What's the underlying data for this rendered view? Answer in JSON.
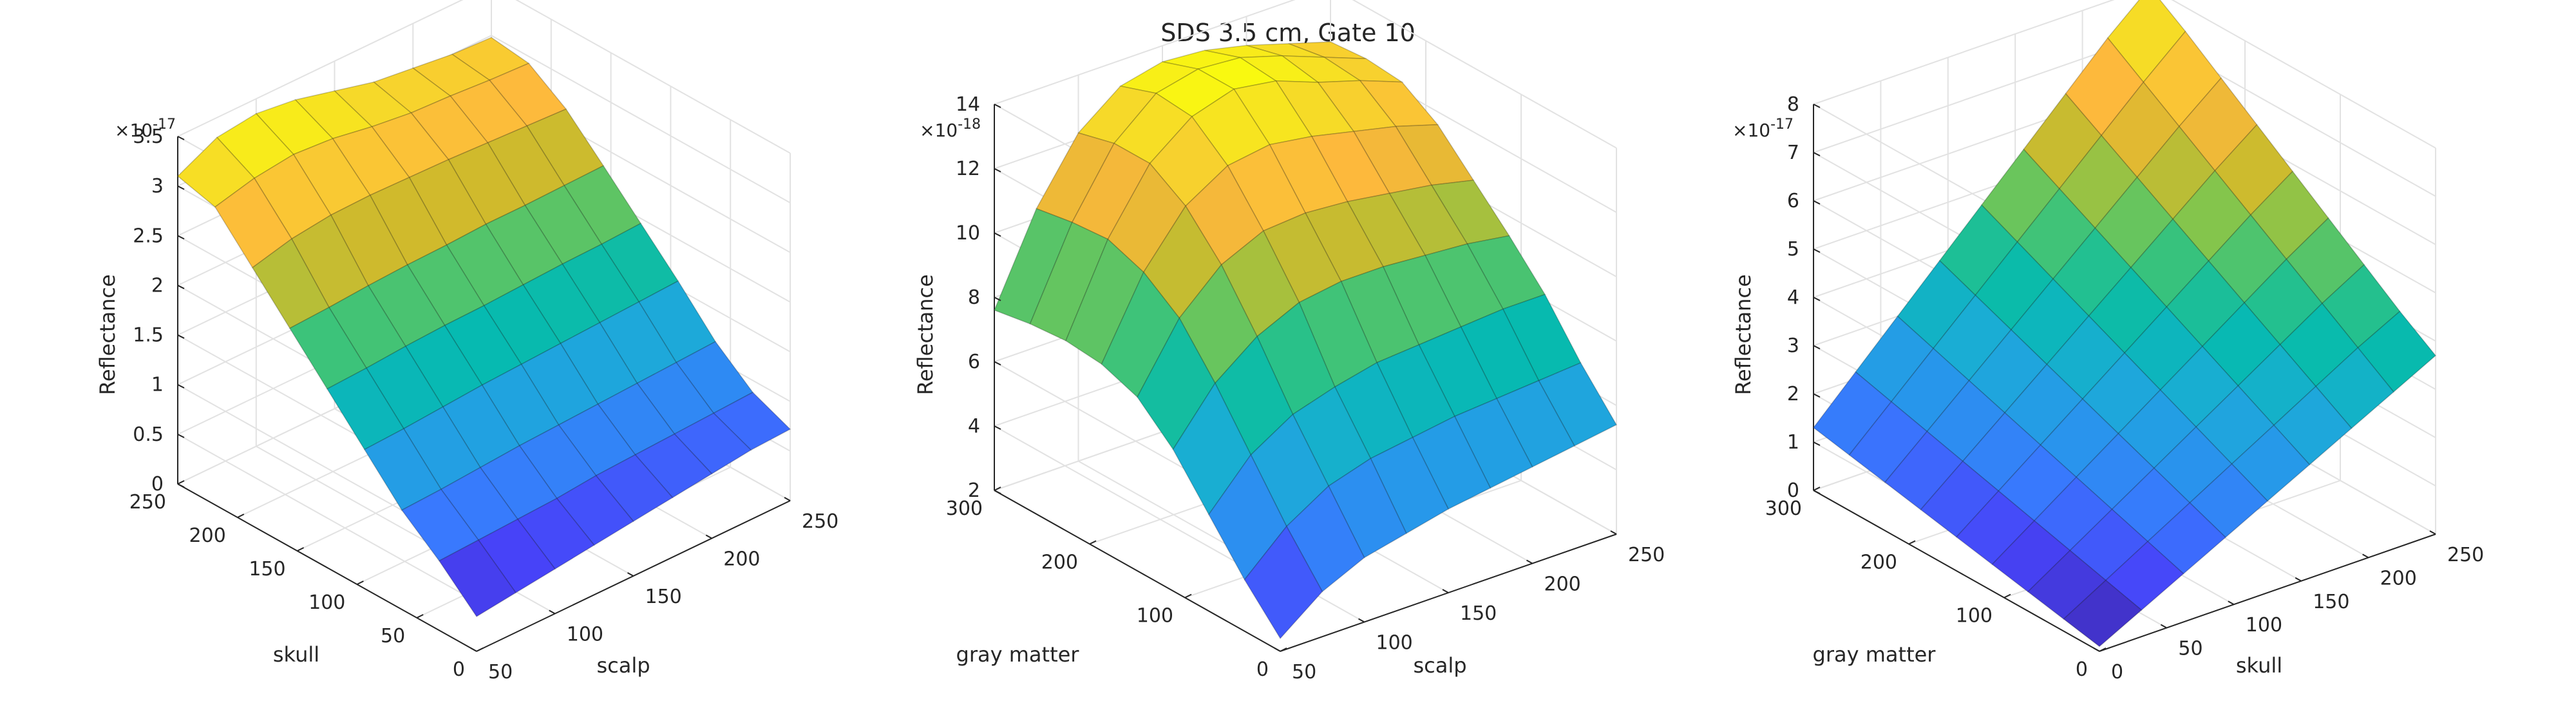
{
  "figure": {
    "title": "SDS 3.5 cm, Gate 10"
  },
  "colormap": [
    "#3e26a8",
    "#4743f8",
    "#3978fe",
    "#2797eb",
    "#1bacd6",
    "#06bab0",
    "#2ec283",
    "#80c64e",
    "#d1ba2c",
    "#fdb83d",
    "#f6d72a",
    "#f9fb0e"
  ],
  "chart_data": [
    {
      "type": "surface",
      "x": {
        "name": "scalp",
        "values": [
          50,
          75,
          100,
          125,
          150,
          175,
          200,
          225,
          250
        ],
        "lim": [
          50,
          250
        ],
        "ticks": [
          50,
          100,
          150,
          200,
          250
        ]
      },
      "y": {
        "name": "skull",
        "values": [
          0,
          31.25,
          62.5,
          93.75,
          125,
          156.25,
          187.5,
          218.75,
          250
        ],
        "lim": [
          0,
          250
        ],
        "ticks": [
          0,
          50,
          100,
          150,
          200,
          250
        ]
      },
      "zlabel": "Reflectance",
      "zlim": [
        0,
        3.5
      ],
      "zticks": [
        0,
        0.5,
        1,
        1.5,
        2,
        2.5,
        3,
        3.5
      ],
      "zexponent": "-17",
      "clim": [
        0.3,
        3.35
      ],
      "z": [
        [
          0.35,
          0.4,
          0.45,
          0.5,
          0.55,
          0.6,
          0.65,
          0.7,
          0.72
        ],
        [
          0.7,
          0.72,
          0.74,
          0.76,
          0.8,
          0.82,
          0.84,
          0.86,
          0.88
        ],
        [
          1.0,
          1.02,
          1.05,
          1.08,
          1.1,
          1.12,
          1.14,
          1.16,
          1.18
        ],
        [
          1.4,
          1.42,
          1.45,
          1.48,
          1.5,
          1.52,
          1.54,
          1.56,
          1.58
        ],
        [
          1.8,
          1.82,
          1.85,
          1.87,
          1.88,
          1.9,
          1.92,
          1.93,
          1.95
        ],
        [
          2.2,
          2.22,
          2.25,
          2.27,
          2.28,
          2.3,
          2.3,
          2.31,
          2.32
        ],
        [
          2.6,
          2.7,
          2.75,
          2.76,
          2.75,
          2.74,
          2.72,
          2.7,
          2.68
        ],
        [
          3.0,
          3.1,
          3.15,
          3.12,
          3.05,
          3.0,
          2.98,
          2.95,
          2.93
        ],
        [
          3.1,
          3.3,
          3.35,
          3.3,
          3.2,
          3.1,
          3.05,
          3.0,
          2.98
        ]
      ]
    },
    {
      "type": "surface",
      "x": {
        "name": "scalp",
        "values": [
          50,
          75,
          100,
          125,
          150,
          175,
          200,
          225,
          250
        ],
        "lim": [
          50,
          250
        ],
        "ticks": [
          50,
          100,
          150,
          200,
          250
        ]
      },
      "y": {
        "name": "gray matter",
        "values": [
          0,
          37.5,
          75,
          112.5,
          150,
          187.5,
          225,
          262.5,
          300
        ],
        "lim": [
          0,
          300
        ],
        "ticks": [
          0,
          100,
          200,
          300
        ]
      },
      "zlabel": "Reflectance",
      "zlim": [
        2,
        14
      ],
      "zticks": [
        2,
        4,
        6,
        8,
        10,
        12,
        14
      ],
      "zexponent": "-18",
      "clim": [
        2.0,
        13.9
      ],
      "z": [
        [
          2.4,
          3.4,
          4.0,
          4.3,
          4.6,
          4.8,
          5.0,
          5.2,
          5.4
        ],
        [
          3.6,
          4.8,
          5.6,
          6.0,
          6.2,
          6.4,
          6.5,
          6.6,
          6.7
        ],
        [
          5.0,
          6.4,
          7.2,
          7.6,
          7.9,
          8.0,
          8.1,
          8.2,
          8.2
        ],
        [
          6.4,
          8.0,
          9.0,
          9.6,
          9.8,
          9.8,
          9.7,
          9.6,
          9.4
        ],
        [
          7.4,
          9.4,
          10.6,
          11.2,
          11.3,
          11.2,
          11.0,
          10.8,
          10.5
        ],
        [
          7.8,
          10.2,
          11.8,
          12.6,
          12.8,
          12.6,
          12.3,
          12.0,
          11.6
        ],
        [
          7.9,
          10.6,
          12.5,
          13.5,
          13.9,
          13.7,
          13.2,
          12.8,
          12.3
        ],
        [
          7.8,
          10.5,
          12.5,
          13.6,
          13.9,
          13.8,
          13.4,
          12.9,
          12.4
        ],
        [
          7.6,
          10.3,
          12.2,
          13.2,
          13.5,
          13.4,
          13.1,
          12.7,
          12.3
        ]
      ]
    },
    {
      "type": "surface",
      "x": {
        "name": "skull",
        "values": [
          0,
          31.25,
          62.5,
          93.75,
          125,
          156.25,
          187.5,
          218.75,
          250
        ],
        "lim": [
          0,
          250
        ],
        "ticks": [
          0,
          50,
          100,
          150,
          200,
          250
        ]
      },
      "y": {
        "name": "gray matter",
        "values": [
          0,
          37.5,
          75,
          112.5,
          150,
          187.5,
          225,
          262.5,
          300
        ],
        "lim": [
          0,
          300
        ],
        "ticks": [
          0,
          100,
          200,
          300
        ]
      },
      "zlabel": "Reflectance",
      "zlim": [
        0,
        8
      ],
      "zticks": [
        0,
        1,
        2,
        3,
        4,
        5,
        6,
        7,
        8
      ],
      "zexponent": "-17",
      "clim": [
        0.1,
        8.0
      ],
      "z": [
        [
          0.1,
          0.55,
          1.0,
          1.45,
          1.9,
          2.35,
          2.8,
          3.25,
          3.7
        ],
        [
          0.25,
          0.75,
          1.25,
          1.75,
          2.25,
          2.75,
          3.25,
          3.75,
          4.2
        ],
        [
          0.4,
          0.95,
          1.5,
          2.05,
          2.6,
          3.15,
          3.7,
          4.25,
          4.75
        ],
        [
          0.55,
          1.15,
          1.75,
          2.35,
          2.95,
          3.55,
          4.15,
          4.75,
          5.3
        ],
        [
          0.7,
          1.35,
          2.0,
          2.65,
          3.3,
          3.95,
          4.6,
          5.25,
          5.85
        ],
        [
          0.85,
          1.55,
          2.25,
          2.95,
          3.65,
          4.35,
          5.05,
          5.75,
          6.4
        ],
        [
          1.0,
          1.75,
          2.5,
          3.25,
          4.0,
          4.75,
          5.5,
          6.25,
          6.95
        ],
        [
          1.15,
          1.95,
          2.75,
          3.55,
          4.35,
          5.15,
          5.95,
          6.75,
          7.5
        ],
        [
          1.3,
          2.15,
          3.0,
          3.85,
          4.7,
          5.55,
          6.4,
          7.25,
          8.0
        ]
      ]
    }
  ]
}
